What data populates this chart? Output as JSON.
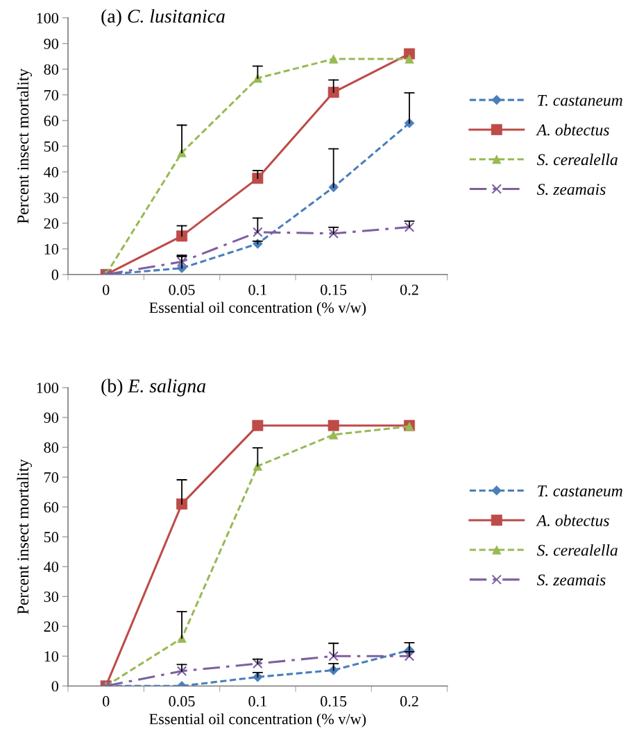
{
  "chart_data": [
    {
      "type": "line",
      "title": "(a) C. lusitanica",
      "xlabel": "Essential oil concentration (% v/w)",
      "ylabel": "Percent insect mortality",
      "categories": [
        "0",
        "0.05",
        "0.1",
        "0.15",
        "0.2"
      ],
      "ylim": [
        0,
        100
      ],
      "yticks": [
        0,
        10,
        20,
        30,
        40,
        50,
        60,
        70,
        80,
        90,
        100
      ],
      "grid": false,
      "legend": "right",
      "series": [
        {
          "name": "T. castaneum",
          "color": "#4a7ebb",
          "marker": "diamond",
          "line_style": "dashed",
          "values": [
            0,
            2.5,
            12,
            34,
            59
          ],
          "errors": [
            null,
            [
              2.5,
              7
            ],
            [
              12,
              13
            ],
            [
              34,
              49
            ],
            [
              59,
              70.8
            ]
          ]
        },
        {
          "name": "A. obtectus",
          "color": "#be4b48",
          "marker": "square",
          "line_style": "solid",
          "values": [
            0,
            15,
            37.5,
            71,
            86
          ],
          "errors": [
            null,
            [
              15,
              19
            ],
            [
              37.5,
              40.5
            ],
            [
              71,
              75.8
            ],
            null
          ]
        },
        {
          "name": "S. cerealella",
          "color": "#98b954",
          "marker": "triangle",
          "line_style": "dashed",
          "values": [
            0,
            47.5,
            76.5,
            84,
            84
          ],
          "errors": [
            null,
            [
              47.5,
              58.2
            ],
            [
              76.5,
              81.2
            ],
            null,
            null
          ]
        },
        {
          "name": "S. zeamais",
          "color": "#7d5fa0",
          "marker": "cross",
          "line_style": "dashdot",
          "values": [
            0,
            5,
            16.5,
            16,
            18.5
          ],
          "errors": [
            null,
            [
              5,
              7.5
            ],
            [
              16.5,
              22
            ],
            [
              16,
              18.4
            ],
            [
              18.5,
              20.8
            ]
          ]
        }
      ]
    },
    {
      "type": "line",
      "title": "(b) E. saligna",
      "xlabel": "Essential oil concentration (% v/w)",
      "ylabel": "Percent insect mortality",
      "categories": [
        "0",
        "0.05",
        "0.1",
        "0.15",
        "0.2"
      ],
      "ylim": [
        0,
        100
      ],
      "yticks": [
        0,
        10,
        20,
        30,
        40,
        50,
        60,
        70,
        80,
        90,
        100
      ],
      "grid": false,
      "legend": "right",
      "series": [
        {
          "name": "T. castaneum",
          "color": "#4a7ebb",
          "marker": "diamond",
          "line_style": "dashed",
          "values": [
            0,
            0,
            3,
            5.3,
            12
          ],
          "errors": [
            null,
            null,
            [
              3,
              4.5
            ],
            [
              5.3,
              7.5
            ],
            [
              12,
              14.5
            ]
          ]
        },
        {
          "name": "A. obtectus",
          "color": "#be4b48",
          "marker": "square",
          "line_style": "solid",
          "values": [
            0,
            61,
            87.3,
            87.3,
            87.3
          ],
          "errors": [
            null,
            [
              61,
              69.1
            ],
            null,
            null,
            null
          ]
        },
        {
          "name": "S. cerealella",
          "color": "#98b954",
          "marker": "triangle",
          "line_style": "dashed",
          "values": [
            0,
            16,
            73.7,
            84.2,
            87
          ],
          "errors": [
            null,
            [
              16,
              24.9
            ],
            [
              73.7,
              79.8
            ],
            null,
            null
          ]
        },
        {
          "name": "S. zeamais",
          "color": "#7d5fa0",
          "marker": "cross",
          "line_style": "dashdot",
          "values": [
            0,
            5,
            7.5,
            10,
            10
          ],
          "errors": [
            null,
            [
              5,
              7.2
            ],
            [
              7.5,
              9
            ],
            [
              10,
              14.3
            ],
            [
              10,
              11.5
            ]
          ]
        }
      ]
    }
  ]
}
